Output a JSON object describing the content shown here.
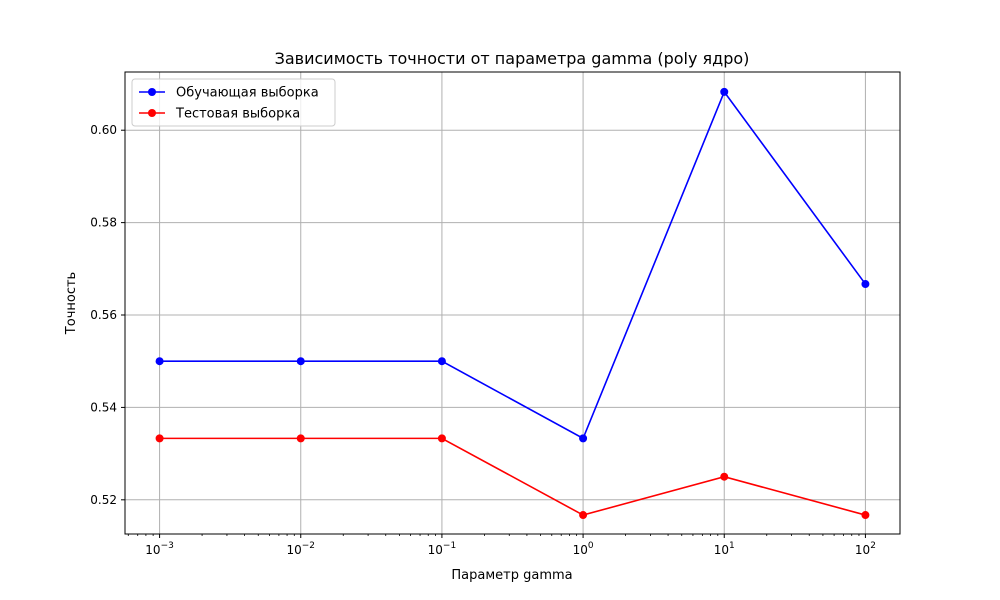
{
  "chart_data": {
    "type": "line",
    "title": "Зависимость точности от параметра gamma (poly ядро)",
    "xlabel": "Параметр gamma",
    "ylabel": "Точность",
    "xscale": "log",
    "x": [
      0.001,
      0.01,
      0.1,
      1,
      10,
      100
    ],
    "x_tick_labels": [
      {
        "base": "10",
        "exp": "−3"
      },
      {
        "base": "10",
        "exp": "−2"
      },
      {
        "base": "10",
        "exp": "−1"
      },
      {
        "base": "10",
        "exp": "0"
      },
      {
        "base": "10",
        "exp": "1"
      },
      {
        "base": "10",
        "exp": "2"
      }
    ],
    "y_ticks": [
      "0.52",
      "0.54",
      "0.56",
      "0.58",
      "0.60"
    ],
    "ylim": [
      0.5126,
      0.6126
    ],
    "xlim_log10": [
      -3.245,
      2.245
    ],
    "grid": true,
    "legend_position": "upper left",
    "series": [
      {
        "name": "Обучающая выборка",
        "color": "#0000ff",
        "marker": "circle",
        "values": [
          0.55,
          0.55,
          0.55,
          0.5333,
          0.6083,
          0.5667
        ]
      },
      {
        "name": "Тестовая выборка",
        "color": "#ff0000",
        "marker": "circle",
        "values": [
          0.5333,
          0.5333,
          0.5333,
          0.5167,
          0.525,
          0.5167
        ]
      }
    ]
  }
}
